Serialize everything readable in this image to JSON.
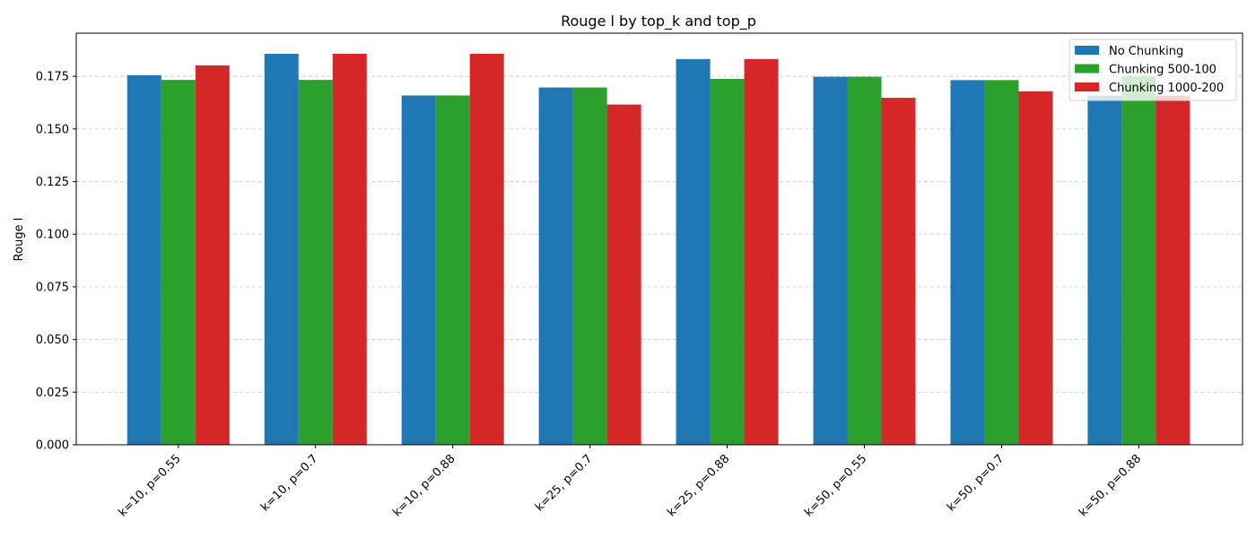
{
  "chart_data": {
    "type": "bar",
    "title": "Rouge l by top_k and top_p",
    "xlabel": "",
    "ylabel": "Rouge l",
    "ylim": [
      0,
      0.1955
    ],
    "yticks": [
      "0.000",
      "0.025",
      "0.050",
      "0.075",
      "0.100",
      "0.125",
      "0.150",
      "0.175"
    ],
    "grid": true,
    "legend_position": "top-right",
    "categories": [
      "k=10, p=0.55",
      "k=10, p=0.7",
      "k=10, p=0.88",
      "k=25, p=0.7",
      "k=25, p=0.88",
      "k=50, p=0.55",
      "k=50, p=0.7",
      "k=50, p=0.88"
    ],
    "series": [
      {
        "name": "No Chunking",
        "color": "#1f77b4",
        "values": [
          0.1755,
          0.1857,
          0.1659,
          0.1697,
          0.1832,
          0.1748,
          0.1732,
          0.1658
        ]
      },
      {
        "name": "Chunking 500-100",
        "color": "#2ca02c",
        "values": [
          0.1733,
          0.1733,
          0.1659,
          0.1697,
          0.1738,
          0.1748,
          0.1732,
          0.1752
        ]
      },
      {
        "name": "Chunking 1000-200",
        "color": "#d62728",
        "values": [
          0.1802,
          0.1857,
          0.1857,
          0.1616,
          0.1832,
          0.1648,
          0.1679,
          0.1658
        ]
      }
    ]
  }
}
